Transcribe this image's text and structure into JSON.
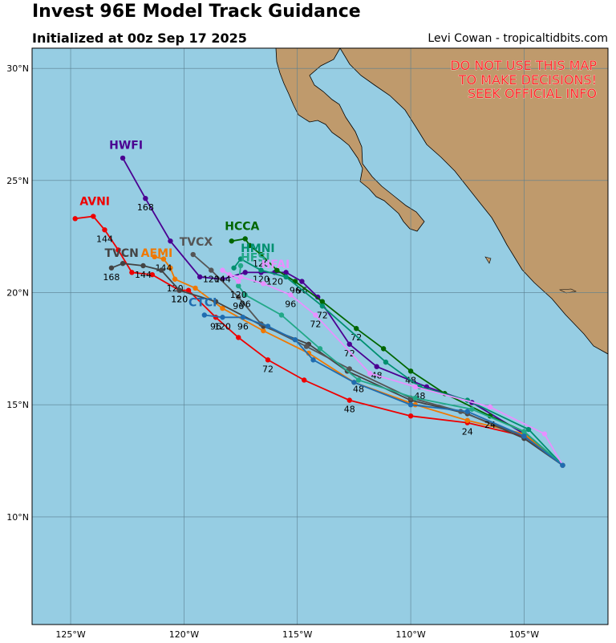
{
  "header": {
    "title": "Invest 96E Model Track Guidance",
    "subtitle": "Initialized at 00z Sep 17 2025",
    "credit": "Levi Cowan - tropicaltidbits.com"
  },
  "warning": [
    "DO NOT USE THIS MAP",
    "TO MAKE DECISIONS!",
    "SEEK OFFICIAL INFO"
  ],
  "map": {
    "lon_range": [
      -126.7,
      -101.3
    ],
    "lat_range": [
      5.2,
      30.9
    ],
    "lon_ticks": [
      -125,
      -120,
      -115,
      -110,
      -105
    ],
    "lat_ticks": [
      10,
      15,
      20,
      25,
      30
    ],
    "lon_tick_labels": [
      "125°W",
      "120°W",
      "115°W",
      "110°W",
      "105°W"
    ],
    "lat_tick_labels": [
      "10°N",
      "15°N",
      "20°N",
      "25°N",
      "30°N"
    ],
    "ocean_color": "#96cde3",
    "land_color": "#bf9a6c",
    "origin": [
      -103.3,
      12.3
    ]
  },
  "chart_data": {
    "type": "map-tracks",
    "tracks": [
      {
        "name": "HWFI",
        "color": "#4b0092",
        "points": [
          [
            -103.3,
            12.3
          ],
          [
            -105,
            13.7
          ],
          [
            -107.3,
            15.1
          ],
          [
            -109.3,
            15.8
          ],
          [
            -111.5,
            16.7
          ],
          [
            -112.7,
            17.7
          ],
          [
            -114.1,
            19.8
          ],
          [
            -114.8,
            20.5
          ],
          [
            -115.5,
            20.9
          ],
          [
            -116.0,
            20.9
          ],
          [
            -116.6,
            20.9
          ],
          [
            -117.3,
            20.9
          ],
          [
            -118.3,
            20.6
          ],
          [
            -119.3,
            20.7
          ],
          [
            -120.6,
            22.3
          ],
          [
            -121.7,
            24.2
          ],
          [
            -122.7,
            26.0
          ]
        ],
        "labels": [
          [
            "48",
            -111.5,
            16.7
          ],
          [
            "72",
            -112.7,
            17.7
          ],
          [
            "96",
            -114.8,
            20.5
          ],
          [
            "120",
            -116.0,
            20.9
          ],
          [
            "168",
            -121.7,
            24.2
          ]
        ],
        "name_at": [
          -123.3,
          26.4
        ]
      },
      {
        "name": "AVNI",
        "color": "#ee0000",
        "points": [
          [
            -103.3,
            12.3
          ],
          [
            -105,
            13.6
          ],
          [
            -107.5,
            14.2
          ],
          [
            -110,
            14.5
          ],
          [
            -112.7,
            15.2
          ],
          [
            -114.7,
            16.1
          ],
          [
            -116.3,
            17.0
          ],
          [
            -117.6,
            18.0
          ],
          [
            -118.6,
            18.9
          ],
          [
            -119.8,
            20.1
          ],
          [
            -120.2,
            20.1
          ],
          [
            -121.4,
            20.8
          ],
          [
            -122.3,
            20.9
          ],
          [
            -122.9,
            21.9
          ],
          [
            -123.5,
            22.8
          ],
          [
            -124.0,
            23.4
          ],
          [
            -124.8,
            23.3
          ]
        ],
        "labels": [
          [
            "24",
            -107.5,
            14.2
          ],
          [
            "48",
            -112.7,
            15.2
          ],
          [
            "72",
            -116.3,
            17.0
          ],
          [
            "96",
            -118.6,
            18.9
          ],
          [
            "120",
            -120.2,
            20.1
          ],
          [
            "144",
            -123.5,
            22.8
          ]
        ],
        "name_at": [
          -124.6,
          23.9
        ]
      },
      {
        "name": "AEMI",
        "color": "#f07800",
        "points": [
          [
            -103.3,
            12.3
          ],
          [
            -105,
            13.7
          ],
          [
            -107.5,
            14.3
          ],
          [
            -109.8,
            15.0
          ],
          [
            -112.5,
            16.0
          ],
          [
            -114.5,
            17.3
          ],
          [
            -116.5,
            18.3
          ],
          [
            -118.3,
            19.3
          ],
          [
            -119.5,
            20.2
          ],
          [
            -120.4,
            20.6
          ],
          [
            -120.6,
            21.1
          ],
          [
            -120.9,
            21.5
          ],
          [
            -121.3,
            21.6
          ]
        ],
        "labels": [
          [
            "120",
            -120.4,
            20.6
          ],
          [
            "144",
            -120.9,
            21.5
          ]
        ],
        "name_at": [
          -121.9,
          21.6
        ]
      },
      {
        "name": "TVCN",
        "color": "#444444",
        "points": [
          [
            -103.3,
            12.3
          ],
          [
            -105,
            13.5
          ],
          [
            -107.5,
            14.6
          ],
          [
            -110,
            15.2
          ],
          [
            -112.8,
            16.5
          ],
          [
            -114.5,
            17.7
          ],
          [
            -116.5,
            18.5
          ],
          [
            -118.6,
            19.6
          ],
          [
            -120.2,
            20.1
          ],
          [
            -121.0,
            21.0
          ],
          [
            -121.8,
            21.2
          ],
          [
            -122.7,
            21.3
          ],
          [
            -123.2,
            21.1
          ]
        ],
        "labels": [
          [
            "120",
            -120.2,
            20.1
          ],
          [
            "144",
            -121.8,
            21.2
          ],
          [
            "168",
            -123.2,
            21.1
          ]
        ],
        "name_at": [
          -123.5,
          21.6
        ]
      },
      {
        "name": "TVCX",
        "color": "#555555",
        "points": [
          [
            -103.3,
            12.3
          ],
          [
            -105,
            13.6
          ],
          [
            -107.8,
            14.7
          ],
          [
            -110,
            15.3
          ],
          [
            -112.7,
            16.6
          ],
          [
            -114.6,
            17.6
          ],
          [
            -116.6,
            18.6
          ],
          [
            -117.6,
            19.8
          ],
          [
            -118.8,
            21.0
          ],
          [
            -119.6,
            21.7
          ]
        ],
        "labels": [
          [
            "96",
            -117.6,
            19.8
          ],
          [
            "120",
            -118.8,
            21.0
          ]
        ],
        "name_at": [
          -120.2,
          22.1
        ]
      },
      {
        "name": "HCCA",
        "color": "#006600",
        "points": [
          [
            -103.3,
            12.3
          ],
          [
            -105,
            13.8
          ],
          [
            -106.5,
            14.5
          ],
          [
            -108.5,
            15.5
          ],
          [
            -110,
            16.5
          ],
          [
            -111.2,
            17.5
          ],
          [
            -112.4,
            18.4
          ],
          [
            -113.9,
            19.6
          ],
          [
            -115.1,
            20.5
          ],
          [
            -115.9,
            21.0
          ],
          [
            -116.6,
            21.7
          ],
          [
            -117.1,
            22.1
          ],
          [
            -117.3,
            22.4
          ],
          [
            -117.9,
            22.3
          ]
        ],
        "labels": [
          [
            "24",
            -106.5,
            14.5
          ],
          [
            "48",
            -110,
            16.5
          ],
          [
            "72",
            -112.4,
            18.4
          ],
          [
            "96",
            -115.1,
            20.5
          ],
          [
            "120",
            -116.6,
            21.7
          ]
        ],
        "name_at": [
          -118.2,
          22.8
        ]
      },
      {
        "name": "HMNI",
        "color": "#009070",
        "points": [
          [
            -103.3,
            12.3
          ],
          [
            -104.8,
            13.9
          ],
          [
            -107.5,
            15.2
          ],
          [
            -109.6,
            15.8
          ],
          [
            -111.1,
            16.9
          ],
          [
            -113.9,
            19.4
          ],
          [
            -115.5,
            20.7
          ],
          [
            -116.6,
            21.0
          ],
          [
            -117.5,
            21.5
          ],
          [
            -117.8,
            21.1
          ]
        ],
        "labels": [
          [
            "48",
            -109.6,
            15.8
          ],
          [
            "72",
            -113.9,
            19.4
          ],
          [
            "120",
            -116.6,
            21.0
          ]
        ],
        "name_at": [
          -117.5,
          21.8
        ]
      },
      {
        "name": "HFSI",
        "color": "#22a888",
        "points": [
          [
            -103.3,
            12.3
          ],
          [
            -105,
            13.8
          ],
          [
            -107.3,
            14.8
          ],
          [
            -109.8,
            15.3
          ],
          [
            -112.3,
            16.1
          ],
          [
            -114,
            17.5
          ],
          [
            -115.7,
            19.0
          ],
          [
            -117.3,
            19.9
          ],
          [
            -117.6,
            20.3
          ],
          [
            -117.5,
            21.2
          ]
        ],
        "labels": [
          [
            "48",
            -112.3,
            16.1
          ],
          [
            "96",
            -117.3,
            19.9
          ],
          [
            "120",
            -117.6,
            20.3
          ]
        ],
        "name_at": [
          -117.5,
          21.4
        ]
      },
      {
        "name": "HFAI",
        "color": "#e890ff",
        "points": [
          [
            -103.3,
            12.3
          ],
          [
            -104.1,
            13.7
          ],
          [
            -106.5,
            14.9
          ],
          [
            -109.8,
            15.8
          ],
          [
            -111.8,
            16.4
          ],
          [
            -114.2,
            19.0
          ],
          [
            -115.3,
            19.9
          ],
          [
            -116.5,
            20.4
          ],
          [
            -117.5,
            20.7
          ],
          [
            -118.0,
            20.8
          ],
          [
            -118.3,
            21.0
          ],
          [
            -117.6,
            20.5
          ]
        ],
        "labels": [
          [
            "72",
            -114.2,
            19.0
          ],
          [
            "96",
            -115.3,
            19.9
          ],
          [
            "144",
            -118.3,
            21.0
          ]
        ],
        "name_at": [
          -116.6,
          21.1
        ]
      },
      {
        "name": "CTCI",
        "color": "#1f6cb0",
        "points": [
          [
            -103.3,
            12.3
          ],
          [
            -105,
            13.6
          ],
          [
            -107.5,
            14.7
          ],
          [
            -110,
            15.0
          ],
          [
            -112.5,
            16.0
          ],
          [
            -114.3,
            17.0
          ],
          [
            -115.1,
            17.9
          ],
          [
            -116.3,
            18.5
          ],
          [
            -117.4,
            18.9
          ],
          [
            -118.3,
            18.9
          ],
          [
            -119.1,
            19.0
          ]
        ],
        "labels": [
          [
            "96",
            -117.4,
            18.9
          ],
          [
            "120",
            -118.3,
            18.9
          ]
        ],
        "name_at": [
          -119.8,
          19.4
        ]
      }
    ]
  }
}
